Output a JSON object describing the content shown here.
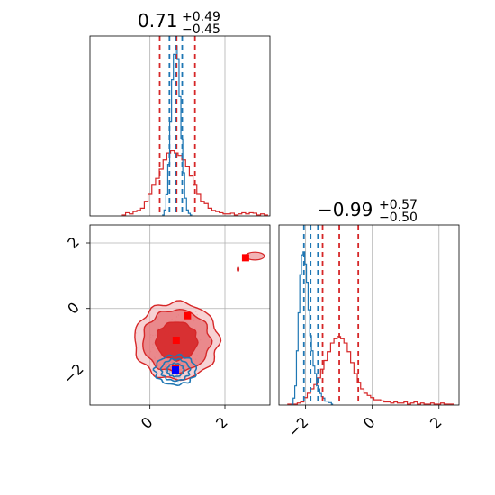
{
  "chart_data": [
    {
      "panel": "marginal-param-1",
      "type": "histogram",
      "title": {
        "value": "0.71",
        "upper": "+0.49",
        "lower": "−0.45"
      },
      "xlim": [
        -1.6,
        3.2
      ],
      "grid": true,
      "series": [
        {
          "color": "#d62728",
          "bins_x": [
            -0.7,
            -0.6,
            -0.5,
            -0.4,
            -0.3,
            -0.2,
            -0.1,
            0.0,
            0.1,
            0.2,
            0.3,
            0.4,
            0.5,
            0.6,
            0.7,
            0.8,
            0.9,
            1.0,
            1.1,
            1.2,
            1.3,
            1.4,
            1.5,
            1.6,
            1.7,
            1.8,
            1.9,
            2.0,
            2.1,
            2.2,
            2.3,
            2.4,
            2.5,
            2.6,
            2.7,
            2.8,
            2.9,
            3.0,
            3.1
          ],
          "counts": [
            0.0,
            0.01,
            0.005,
            0.015,
            0.02,
            0.03,
            0.06,
            0.09,
            0.13,
            0.16,
            0.2,
            0.24,
            0.27,
            0.28,
            0.27,
            0.26,
            0.24,
            0.21,
            0.17,
            0.13,
            0.09,
            0.06,
            0.05,
            0.03,
            0.02,
            0.015,
            0.01,
            0.005,
            0.005,
            0.008,
            0.0,
            0.005,
            0.01,
            0.005,
            0.01,
            0.008,
            0.0,
            0.005,
            0.0
          ],
          "quantile_lines": [
            0.26,
            0.71,
            1.2
          ]
        },
        {
          "color": "#1f77b4",
          "bins_x": [
            0.35,
            0.4,
            0.45,
            0.5,
            0.55,
            0.6,
            0.65,
            0.7,
            0.75,
            0.8,
            0.85,
            0.9,
            0.95,
            1.0,
            1.05,
            1.1
          ],
          "counts": [
            0.0,
            0.03,
            0.12,
            0.3,
            0.55,
            0.8,
            0.95,
            1.0,
            0.92,
            0.7,
            0.45,
            0.25,
            0.1,
            0.03,
            0.01,
            0.0
          ],
          "quantile_lines": [
            0.52,
            0.68,
            0.86
          ]
        }
      ]
    },
    {
      "panel": "marginal-param-2",
      "type": "histogram",
      "title": {
        "value": "−0.99",
        "upper": "+0.57",
        "lower": "−0.50"
      },
      "xlim": [
        -2.8,
        2.6
      ],
      "xticks": [
        "−2",
        "0",
        "2"
      ],
      "xtick_values": [
        -2,
        0,
        2
      ],
      "grid": true,
      "series": [
        {
          "color": "#d62728",
          "bins_x": [
            -2.5,
            -2.4,
            -2.3,
            -2.2,
            -2.1,
            -2.0,
            -1.9,
            -1.8,
            -1.7,
            -1.6,
            -1.5,
            -1.4,
            -1.3,
            -1.2,
            -1.1,
            -1.0,
            -0.9,
            -0.8,
            -0.7,
            -0.6,
            -0.5,
            -0.4,
            -0.3,
            -0.2,
            -0.1,
            0.0,
            0.1,
            0.2,
            0.3,
            0.4,
            0.5,
            0.6,
            0.7,
            0.8,
            0.9,
            1.0,
            1.1,
            1.2,
            1.3,
            1.4,
            1.5,
            1.6,
            1.7,
            1.8,
            1.9,
            2.0,
            2.1,
            2.2,
            2.3,
            2.4
          ],
          "counts": [
            0.0,
            0.0,
            0.0,
            0.005,
            0.01,
            0.03,
            0.05,
            0.07,
            0.09,
            0.12,
            0.16,
            0.2,
            0.24,
            0.28,
            0.3,
            0.31,
            0.3,
            0.28,
            0.24,
            0.19,
            0.14,
            0.1,
            0.07,
            0.05,
            0.04,
            0.03,
            0.02,
            0.02,
            0.015,
            0.01,
            0.01,
            0.005,
            0.01,
            0.005,
            0.005,
            0.01,
            0.0,
            0.005,
            0.01,
            0.0,
            0.005,
            0.0,
            0.0,
            0.005,
            0.0,
            0.0,
            0.005,
            0.0,
            0.0,
            0.0
          ],
          "quantile_lines": [
            -1.49,
            -0.99,
            -0.42
          ]
        },
        {
          "color": "#1f77b4",
          "bins_x": [
            -2.4,
            -2.35,
            -2.3,
            -2.25,
            -2.2,
            -2.15,
            -2.1,
            -2.05,
            -2.0,
            -1.95,
            -1.9,
            -1.85,
            -1.8,
            -1.75,
            -1.7,
            -1.65,
            -1.6,
            -1.55,
            -1.5,
            -1.45,
            -1.4,
            -1.35,
            -1.3,
            -1.25,
            -1.2
          ],
          "counts": [
            0.0,
            0.04,
            0.12,
            0.35,
            0.6,
            0.85,
            0.98,
            1.0,
            0.92,
            0.8,
            0.62,
            0.45,
            0.35,
            0.25,
            0.2,
            0.12,
            0.1,
            0.07,
            0.05,
            0.04,
            0.02,
            0.02,
            0.01,
            0.01,
            0.0
          ],
          "quantile_lines": [
            -2.05,
            -1.85,
            -1.63
          ]
        }
      ]
    },
    {
      "panel": "joint-param-1-vs-param-2",
      "type": "contour",
      "xlim": [
        -1.6,
        3.2
      ],
      "ylim": [
        -2.95,
        2.55
      ],
      "xticks": [
        "0",
        "2"
      ],
      "xtick_values": [
        0,
        2
      ],
      "yticks": [
        "−2",
        "0",
        "2"
      ],
      "ytick_values": [
        -2,
        0,
        2
      ],
      "grid": true,
      "series": [
        {
          "color": "#d62728",
          "center": [
            0.71,
            -0.99
          ],
          "contour_radii": [
            [
              0.55,
              0.58
            ],
            [
              0.9,
              0.95
            ],
            [
              1.12,
              1.18
            ]
          ],
          "markers": [
            [
              1.0,
              -0.22
            ],
            [
              0.7,
              -0.97
            ],
            [
              0.68,
              -1.82
            ],
            [
              2.55,
              1.55
            ]
          ],
          "outlier_contour": {
            "center": [
              2.8,
              1.6
            ],
            "r": [
              0.25,
              0.12
            ]
          }
        },
        {
          "color": "#1f77b4",
          "center": [
            0.68,
            -1.88
          ],
          "contour_radii": [
            [
              0.22,
              0.2
            ],
            [
              0.38,
              0.33
            ],
            [
              0.55,
              0.45
            ]
          ],
          "marker": [
            0.68,
            -1.88
          ]
        }
      ]
    }
  ]
}
